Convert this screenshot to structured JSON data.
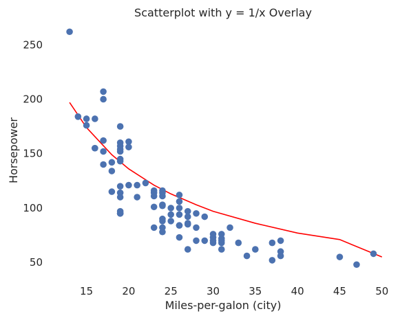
{
  "chart_data": {
    "type": "scatter",
    "title": "Scatterplot with y = 1/x Overlay",
    "xlabel": "Miles-per-galon (city)",
    "ylabel": "Horsepower",
    "xlim": [
      11.2,
      51.0
    ],
    "ylim": [
      33,
      271
    ],
    "xticks": [
      15,
      20,
      25,
      30,
      35,
      40,
      45,
      50
    ],
    "yticks": [
      50,
      100,
      150,
      200,
      250
    ],
    "grid": false,
    "legend": "none",
    "colors": {
      "points": "#4c72b0",
      "curve": "#ff0000"
    },
    "series": [
      {
        "kind": "points",
        "x": [
          13,
          14,
          15,
          15,
          16,
          16,
          16,
          17,
          17,
          17,
          17,
          17,
          18,
          18,
          18,
          19,
          19,
          19,
          19,
          19,
          19,
          19,
          19,
          19,
          19,
          19,
          19,
          19,
          19,
          20,
          20,
          20,
          21,
          21,
          22,
          23,
          23,
          23,
          23,
          23,
          24,
          24,
          24,
          24,
          24,
          24,
          24,
          24,
          24,
          25,
          25,
          25,
          26,
          26,
          26,
          26,
          26,
          26,
          26,
          27,
          27,
          27,
          27,
          27,
          28,
          28,
          28,
          29,
          29,
          30,
          30,
          30,
          30,
          31,
          31,
          31,
          31,
          31,
          32,
          33,
          34,
          35,
          37,
          37,
          38,
          38,
          38,
          45,
          47,
          49
        ],
        "y": [
          262,
          184,
          182,
          176,
          182,
          155,
          155,
          207,
          200,
          162,
          152,
          140,
          142,
          134,
          115,
          175,
          160,
          157,
          154,
          152,
          145,
          143,
          120,
          114,
          110,
          97,
          95,
          95,
          95,
          161,
          156,
          121,
          121,
          110,
          123,
          116,
          114,
          111,
          101,
          82,
          116,
          114,
          111,
          103,
          102,
          90,
          88,
          82,
          78,
          100,
          94,
          88,
          112,
          106,
          100,
          94,
          84,
          84,
          73,
          97,
          92,
          86,
          85,
          62,
          95,
          82,
          70,
          92,
          70,
          76,
          73,
          70,
          68,
          76,
          72,
          70,
          68,
          62,
          82,
          68,
          56,
          62,
          68,
          52,
          70,
          60,
          56,
          55,
          48,
          58
        ]
      },
      {
        "kind": "curve",
        "equation": "y = 1/x",
        "x": [
          13,
          15,
          18,
          20,
          23,
          25,
          28,
          30,
          35,
          40,
          45,
          50
        ],
        "y": [
          197,
          174,
          149,
          136,
          121,
          113,
          103,
          97,
          86,
          77,
          71,
          55
        ]
      }
    ]
  }
}
